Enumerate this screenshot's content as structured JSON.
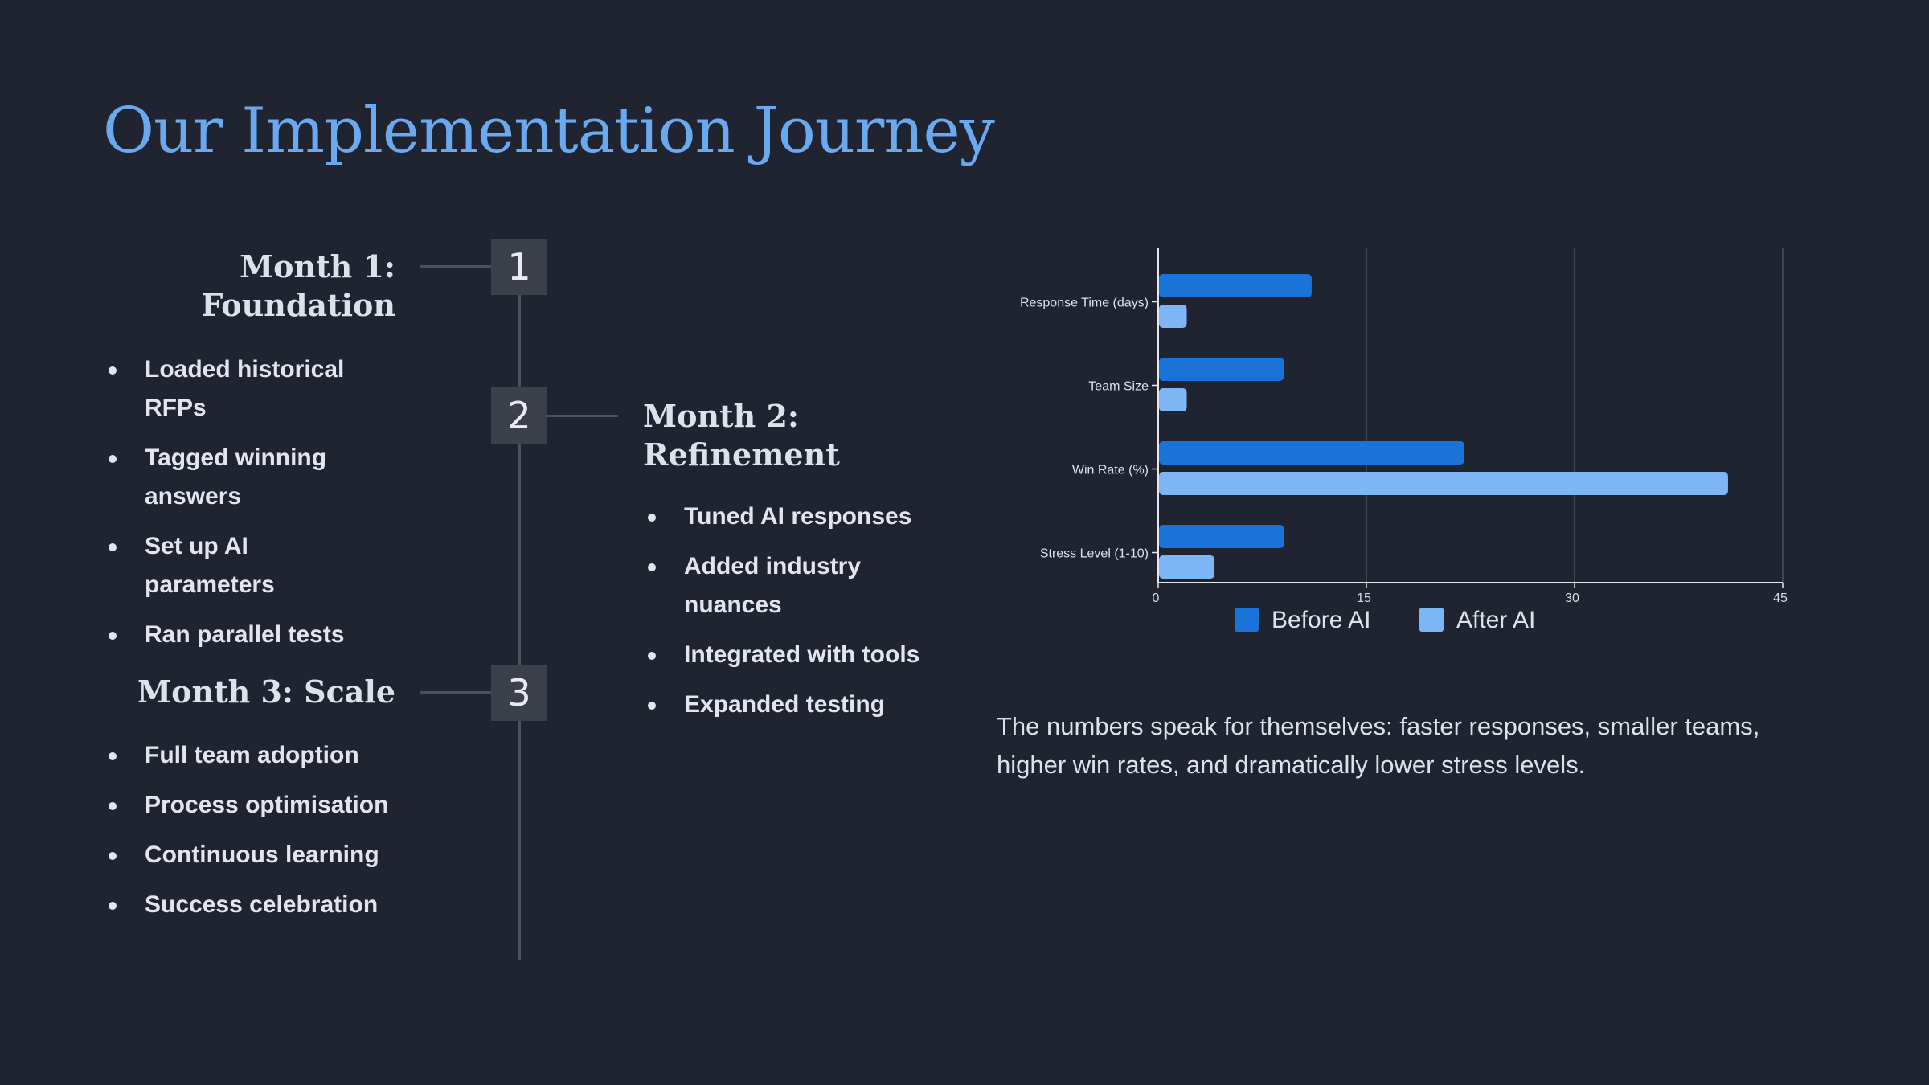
{
  "title": "Our Implementation Journey",
  "steps": [
    {
      "number": "1",
      "title_line1": "Month 1:",
      "title_line2": "Foundation",
      "items": [
        "Loaded historical RFPs",
        "Tagged winning answers",
        "Set up AI parameters",
        "Ran parallel tests"
      ]
    },
    {
      "number": "2",
      "title_line1": "Month 2:",
      "title_line2": "Refinement",
      "items": [
        "Tuned AI responses",
        "Added industry nuances",
        "Integrated with tools",
        "Expanded testing"
      ]
    },
    {
      "number": "3",
      "title_line1": "Month 3: Scale",
      "title_line2": "",
      "items": [
        "Full team adoption",
        "Process optimisation",
        "Continuous learning",
        "Success celebration"
      ]
    }
  ],
  "chart_data": {
    "type": "bar",
    "orientation": "horizontal",
    "categories": [
      "Response Time (days)",
      "Team Size",
      "Win Rate (%)",
      "Stress Level (1-10)"
    ],
    "series": [
      {
        "name": "Before AI",
        "values": [
          11,
          9,
          22,
          9
        ],
        "color": "#1a73d9"
      },
      {
        "name": "After AI",
        "values": [
          2,
          2,
          41,
          4
        ],
        "color": "#7eb6f5"
      }
    ],
    "xlim": [
      0,
      45
    ],
    "xticks": [
      0,
      15,
      30,
      45
    ],
    "grid": true,
    "legend": "bottom"
  },
  "caption": "The numbers speak for themselves: faster responses, smaller teams, higher win rates, and dramatically lower stress levels.",
  "colors": {
    "background": "#1f2430",
    "title": "#6aa9f0",
    "before": "#1a73d9",
    "after": "#7eb6f5"
  }
}
